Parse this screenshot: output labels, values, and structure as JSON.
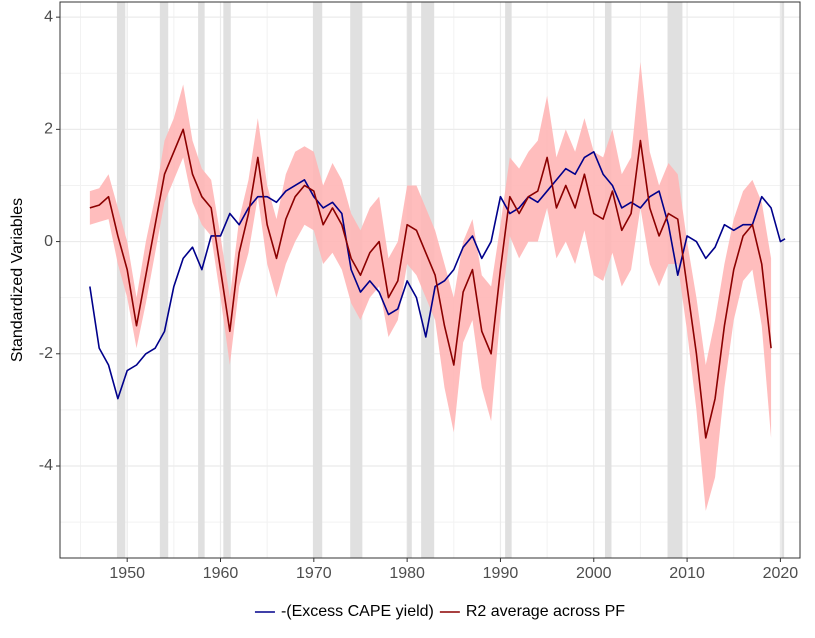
{
  "chart_data": {
    "type": "line",
    "ylabel": "Standardized Variables",
    "xlim": [
      1942.8,
      2022.1
    ],
    "ylim": [
      -5.64,
      4.27
    ],
    "xticks": [
      1950,
      1960,
      1970,
      1980,
      1990,
      2000,
      2010,
      2020
    ],
    "yticks": [
      -4,
      -2,
      0,
      2,
      4
    ],
    "xminor": [
      1945,
      1955,
      1965,
      1975,
      1985,
      1995,
      2005,
      2015
    ],
    "yminor": [
      -5,
      -3,
      -1,
      1,
      3
    ],
    "grid": true,
    "legend": "bottom",
    "shade_color": "#e0e0e0",
    "shaded_periods": [
      [
        1948.9,
        1949.8
      ],
      [
        1953.5,
        1954.4
      ],
      [
        1957.6,
        1958.3
      ],
      [
        1960.3,
        1961.1
      ],
      [
        1969.9,
        1970.9
      ],
      [
        1973.9,
        1975.2
      ],
      [
        1980.0,
        1980.5
      ],
      [
        1981.5,
        1982.9
      ],
      [
        1990.5,
        1991.2
      ],
      [
        2001.2,
        2001.9
      ],
      [
        2007.9,
        2009.5
      ],
      [
        2020.1,
        2020.4
      ]
    ],
    "series": [
      {
        "name": "-(Excess CAPE yield)",
        "color": "#00008b",
        "x": [
          1946,
          1947,
          1948,
          1949,
          1950,
          1951,
          1952,
          1953,
          1954,
          1955,
          1956,
          1957,
          1958,
          1959,
          1960,
          1961,
          1962,
          1963,
          1964,
          1965,
          1966,
          1967,
          1968,
          1969,
          1970,
          1971,
          1972,
          1973,
          1974,
          1975,
          1976,
          1977,
          1978,
          1979,
          1980,
          1981,
          1982,
          1983,
          1984,
          1985,
          1986,
          1987,
          1988,
          1989,
          1990,
          1991,
          1992,
          1993,
          1994,
          1995,
          1996,
          1997,
          1998,
          1999,
          2000,
          2001,
          2002,
          2003,
          2004,
          2005,
          2006,
          2007,
          2008,
          2009,
          2010,
          2011,
          2012,
          2013,
          2014,
          2015,
          2016,
          2017,
          2018,
          2019,
          2020,
          2020.5
        ],
        "values": [
          -0.8,
          -1.9,
          -2.2,
          -2.8,
          -2.3,
          -2.2,
          -2.0,
          -1.9,
          -1.6,
          -0.8,
          -0.3,
          -0.1,
          -0.5,
          0.1,
          0.1,
          0.5,
          0.3,
          0.6,
          0.8,
          0.8,
          0.7,
          0.9,
          1.0,
          1.1,
          0.8,
          0.6,
          0.7,
          0.5,
          -0.5,
          -0.9,
          -0.7,
          -0.9,
          -1.3,
          -1.2,
          -0.7,
          -1.0,
          -1.7,
          -0.8,
          -0.7,
          -0.5,
          -0.1,
          0.1,
          -0.3,
          0.0,
          0.8,
          0.5,
          0.6,
          0.8,
          0.7,
          0.9,
          1.1,
          1.3,
          1.2,
          1.5,
          1.6,
          1.2,
          1.0,
          0.6,
          0.7,
          0.6,
          0.8,
          0.9,
          0.3,
          -0.6,
          0.1,
          0.0,
          -0.3,
          -0.1,
          0.3,
          0.2,
          0.3,
          0.3,
          0.8,
          0.6,
          0.0,
          0.05
        ]
      },
      {
        "name": "R2 average across PF",
        "color": "#8b0000",
        "band_color": "#ffb6b6",
        "x": [
          1946,
          1947,
          1948,
          1949,
          1950,
          1951,
          1952,
          1953,
          1954,
          1955,
          1956,
          1957,
          1958,
          1959,
          1960,
          1961,
          1962,
          1963,
          1964,
          1965,
          1966,
          1967,
          1968,
          1969,
          1970,
          1971,
          1972,
          1973,
          1974,
          1975,
          1976,
          1977,
          1978,
          1979,
          1980,
          1981,
          1982,
          1983,
          1984,
          1985,
          1986,
          1987,
          1988,
          1989,
          1990,
          1991,
          1992,
          1993,
          1994,
          1995,
          1996,
          1997,
          1998,
          1999,
          2000,
          2001,
          2002,
          2003,
          2004,
          2005,
          2006,
          2007,
          2008,
          2009,
          2010,
          2011,
          2012,
          2013,
          2014,
          2015,
          2016,
          2017,
          2018,
          2019
        ],
        "values": [
          0.6,
          0.65,
          0.8,
          0.1,
          -0.5,
          -1.5,
          -0.6,
          0.3,
          1.2,
          1.6,
          2.0,
          1.2,
          0.8,
          0.6,
          -0.5,
          -1.6,
          -0.2,
          0.5,
          1.5,
          0.3,
          -0.3,
          0.4,
          0.8,
          1.0,
          0.9,
          0.3,
          0.6,
          0.3,
          -0.3,
          -0.6,
          -0.2,
          0.0,
          -1.0,
          -0.7,
          0.3,
          0.2,
          -0.2,
          -0.6,
          -1.5,
          -2.2,
          -0.9,
          -0.5,
          -1.6,
          -2.0,
          -0.5,
          0.8,
          0.5,
          0.8,
          0.9,
          1.5,
          0.6,
          1.0,
          0.6,
          1.2,
          0.5,
          0.4,
          0.9,
          0.2,
          0.5,
          1.8,
          0.6,
          0.1,
          0.5,
          0.4,
          -0.8,
          -2.0,
          -3.5,
          -2.8,
          -1.5,
          -0.5,
          0.1,
          0.3,
          -0.4,
          -1.9
        ],
        "lower": [
          0.3,
          0.35,
          0.4,
          -0.4,
          -1.0,
          -1.9,
          -1.1,
          -0.2,
          0.7,
          1.1,
          1.5,
          0.7,
          0.3,
          0.1,
          -1.0,
          -2.2,
          -0.8,
          -0.2,
          0.8,
          -0.4,
          -1.0,
          -0.4,
          0.0,
          0.3,
          0.2,
          -0.4,
          -0.2,
          -0.5,
          -1.1,
          -1.4,
          -1.0,
          -0.8,
          -1.7,
          -1.4,
          -0.4,
          -0.6,
          -1.0,
          -1.4,
          -2.6,
          -3.4,
          -1.8,
          -1.4,
          -2.6,
          -3.2,
          -1.3,
          0.1,
          -0.3,
          0.0,
          0.0,
          0.6,
          -0.3,
          0.0,
          -0.4,
          0.2,
          -0.6,
          -0.7,
          -0.2,
          -0.8,
          -0.5,
          0.6,
          -0.4,
          -0.8,
          -0.4,
          -0.4,
          -1.6,
          -3.0,
          -4.8,
          -4.2,
          -2.6,
          -1.4,
          -0.7,
          -0.5,
          -1.5,
          -3.5
        ],
        "upper": [
          0.9,
          0.95,
          1.2,
          0.6,
          0.0,
          -1.0,
          0.0,
          0.8,
          1.8,
          2.2,
          2.8,
          1.8,
          1.3,
          1.1,
          0.1,
          -1.0,
          0.4,
          1.1,
          2.2,
          1.0,
          0.4,
          1.2,
          1.6,
          1.7,
          1.6,
          1.0,
          1.4,
          1.1,
          0.5,
          0.2,
          0.6,
          0.8,
          -0.3,
          0.0,
          1.0,
          1.0,
          0.6,
          0.2,
          -0.4,
          -1.0,
          0.0,
          0.4,
          -0.6,
          -0.8,
          0.3,
          1.5,
          1.3,
          1.6,
          1.8,
          2.6,
          1.5,
          2.0,
          1.6,
          2.2,
          1.6,
          1.5,
          2.0,
          1.2,
          1.5,
          3.2,
          1.6,
          1.0,
          1.4,
          1.2,
          0.0,
          -1.0,
          -2.2,
          -1.4,
          -0.4,
          0.4,
          0.9,
          1.1,
          0.7,
          -0.3
        ]
      }
    ]
  }
}
